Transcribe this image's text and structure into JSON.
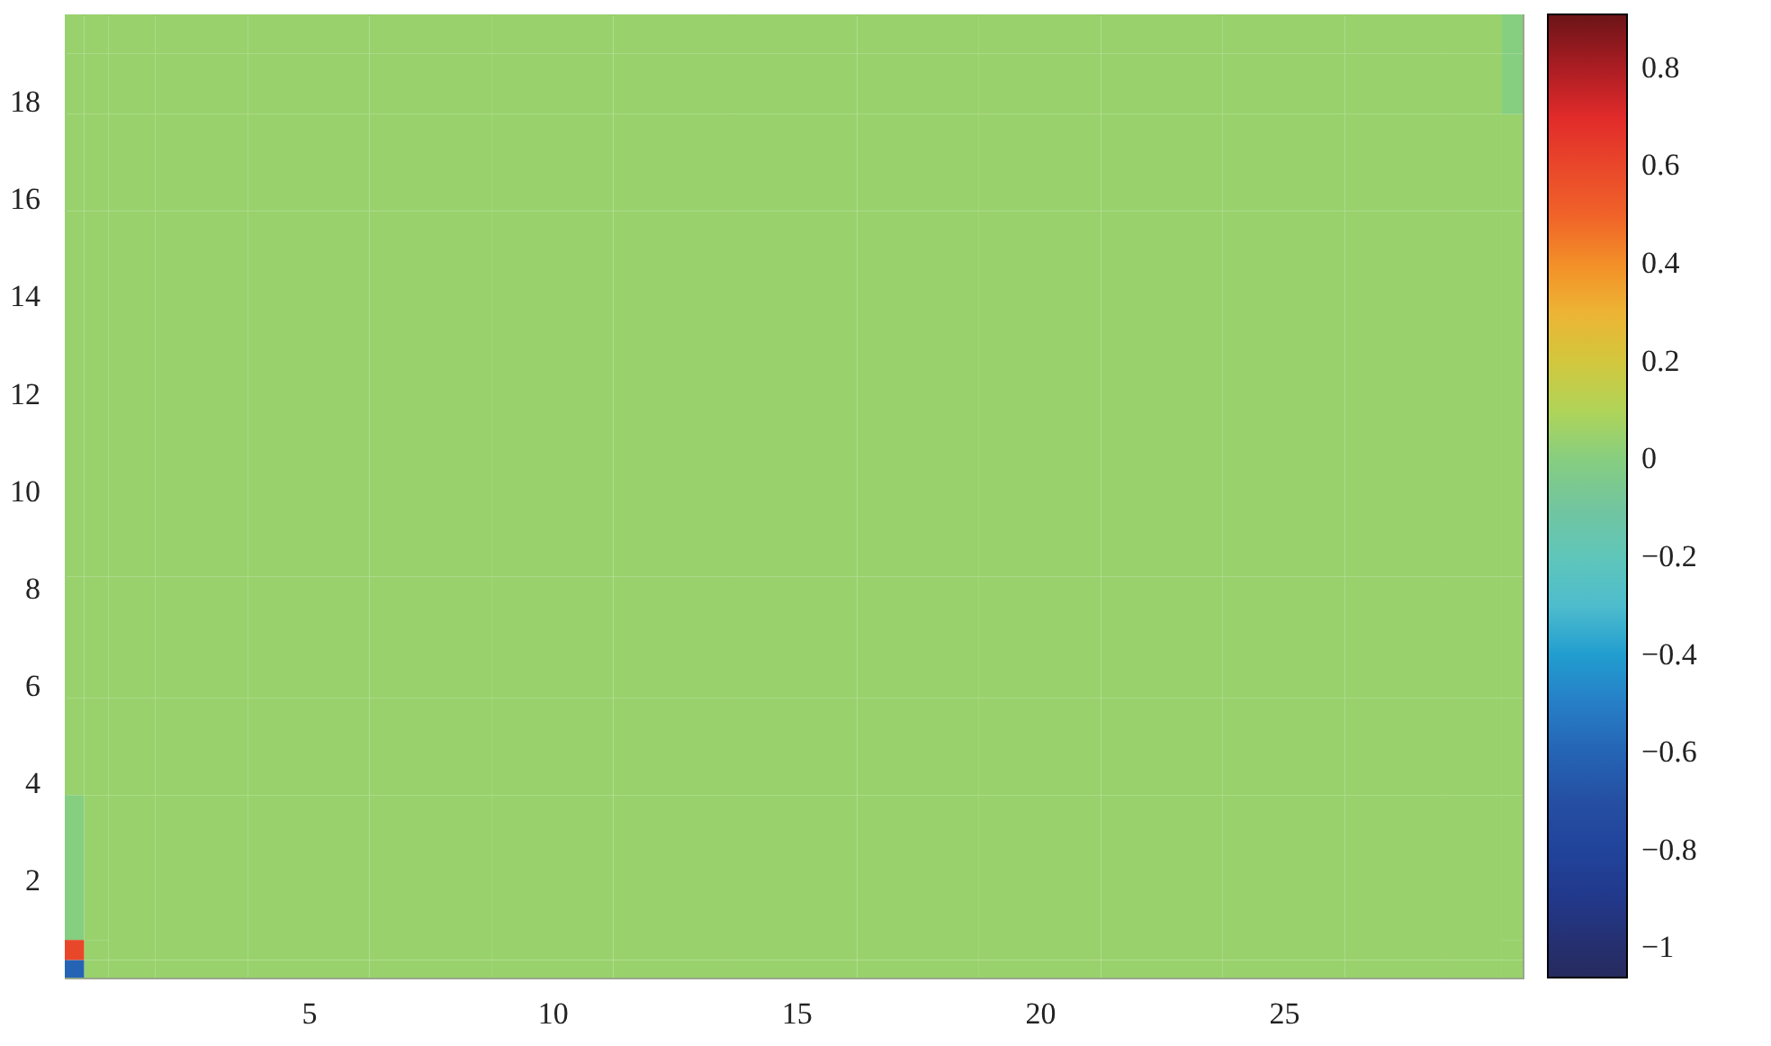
{
  "chart_data": {
    "type": "heatmap",
    "x": [
      0.2,
      0.6,
      1.2,
      2.5,
      5,
      7.5,
      10,
      12.5,
      15,
      17.5,
      20,
      22.5,
      25,
      27.5,
      29.2,
      29.75
    ],
    "y": [
      0.175,
      0.55,
      1.0,
      2.0,
      3.0,
      4.5,
      7,
      9.5,
      12,
      14.5,
      17,
      18.5,
      19.5
    ],
    "cells": [
      [
        -0.6,
        0.05,
        0.05,
        0.05,
        0.05,
        0.05,
        0.05,
        0.05,
        0.05,
        0.05,
        0.05,
        0.05,
        0.05,
        0.05,
        0.05,
        0.05
      ],
      [
        0.6,
        0.05,
        0.05,
        0.05,
        0.05,
        0.05,
        0.05,
        0.05,
        0.05,
        0.05,
        0.05,
        0.05,
        0.05,
        0.05,
        0.05,
        0.05
      ],
      [
        0.0,
        0.05,
        0.05,
        0.05,
        0.05,
        0.05,
        0.05,
        0.05,
        0.05,
        0.05,
        0.05,
        0.05,
        0.05,
        0.05,
        0.05,
        0.05
      ],
      [
        0.0,
        0.05,
        0.05,
        0.05,
        0.05,
        0.05,
        0.05,
        0.05,
        0.05,
        0.05,
        0.05,
        0.05,
        0.05,
        0.05,
        0.05,
        0.05
      ],
      [
        0.0,
        0.05,
        0.05,
        0.05,
        0.05,
        0.05,
        0.05,
        0.05,
        0.05,
        0.05,
        0.05,
        0.05,
        0.05,
        0.05,
        0.05,
        0.05
      ],
      [
        0.05,
        0.05,
        0.05,
        0.05,
        0.05,
        0.05,
        0.05,
        0.05,
        0.05,
        0.05,
        0.05,
        0.05,
        0.05,
        0.05,
        0.05,
        0.05
      ],
      [
        0.05,
        0.05,
        0.05,
        0.05,
        0.05,
        0.05,
        0.05,
        0.05,
        0.05,
        0.05,
        0.05,
        0.05,
        0.05,
        0.05,
        0.05,
        0.05
      ],
      [
        0.05,
        0.05,
        0.05,
        0.05,
        0.05,
        0.05,
        0.05,
        0.05,
        0.05,
        0.05,
        0.05,
        0.05,
        0.05,
        0.05,
        0.05,
        0.05
      ],
      [
        0.05,
        0.05,
        0.05,
        0.05,
        0.05,
        0.05,
        0.05,
        0.05,
        0.05,
        0.05,
        0.05,
        0.05,
        0.05,
        0.05,
        0.05,
        0.05
      ],
      [
        0.05,
        0.05,
        0.05,
        0.05,
        0.05,
        0.05,
        0.05,
        0.05,
        0.05,
        0.05,
        0.05,
        0.05,
        0.05,
        0.05,
        0.05,
        0.05
      ],
      [
        0.05,
        0.05,
        0.05,
        0.05,
        0.05,
        0.05,
        0.05,
        0.05,
        0.05,
        0.05,
        0.05,
        0.05,
        0.05,
        0.05,
        0.05,
        0.05
      ],
      [
        0.05,
        0.05,
        0.05,
        0.05,
        0.05,
        0.05,
        0.05,
        0.05,
        0.05,
        0.05,
        0.05,
        0.05,
        0.05,
        0.05,
        0.05,
        0.0
      ],
      [
        0.05,
        0.05,
        0.05,
        0.05,
        0.05,
        0.05,
        0.05,
        0.05,
        0.05,
        0.05,
        0.05,
        0.05,
        0.05,
        0.05,
        0.05,
        0.0
      ]
    ],
    "xlim": [
      0,
      29.9
    ],
    "ylim": [
      0,
      19.8
    ],
    "xticks": [
      5,
      10,
      15,
      20,
      25
    ],
    "yticks": [
      2,
      4,
      6,
      8,
      10,
      12,
      14,
      16,
      18
    ],
    "clim": [
      -1.06,
      0.91
    ],
    "cticks": [
      {
        "value": -1,
        "label": "−1"
      },
      {
        "value": -0.8,
        "label": "−0.8"
      },
      {
        "value": -0.6,
        "label": "−0.6"
      },
      {
        "value": -0.4,
        "label": "−0.4"
      },
      {
        "value": -0.2,
        "label": "−0.2"
      },
      0,
      0.2,
      0.4,
      0.6,
      0.8
    ],
    "colors": [
      "#262a5e",
      "#1f3b95",
      "#2753a6",
      "#2a86cc",
      "#5ec4cc",
      "#78c598",
      "#bcd44e",
      "#f2b035",
      "#ef5a2a",
      "#e0262a",
      "#6b1418"
    ]
  }
}
